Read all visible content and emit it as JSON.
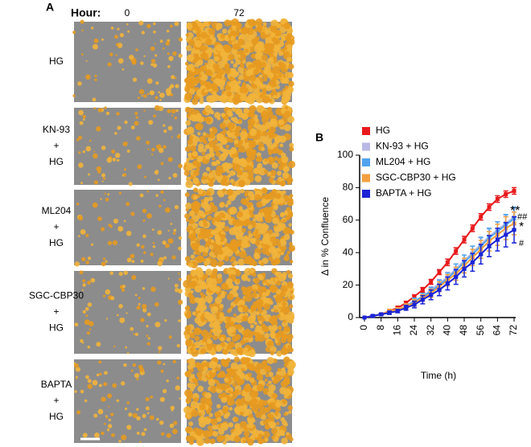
{
  "panel_a": {
    "panel_label": "A",
    "hour_label": "Hour:",
    "columns": [
      "0",
      "72"
    ],
    "rows": [
      [
        "HG"
      ],
      [
        "KN-93",
        "+",
        "HG"
      ],
      [
        "ML204",
        "+",
        "HG"
      ],
      [
        "SGC-CBP30",
        "+",
        "HG"
      ],
      [
        "BAPTA",
        "+",
        "HG"
      ]
    ]
  },
  "chart_data": {
    "type": "line",
    "panel_label": "B",
    "x_label": "Time (h)",
    "y_label": "Δ in % Confluence",
    "x": [
      0,
      4,
      8,
      12,
      16,
      20,
      24,
      28,
      32,
      36,
      40,
      44,
      48,
      52,
      56,
      60,
      64,
      68,
      72
    ],
    "xlim": [
      0,
      72
    ],
    "xticks": [
      0,
      8,
      16,
      24,
      32,
      40,
      48,
      56,
      64,
      72
    ],
    "ylim": [
      0,
      100
    ],
    "yticks": [
      0,
      20,
      40,
      60,
      80,
      100
    ],
    "legend": "upper left",
    "series": [
      {
        "name": "HG",
        "color": "#e8191c",
        "values": [
          0,
          1,
          2,
          4,
          6,
          9,
          13,
          17,
          22,
          28,
          34,
          41,
          48,
          55,
          62,
          68,
          73,
          76,
          78
        ],
        "errors": [
          0,
          0.5,
          0.5,
          1,
          1,
          1,
          1,
          1.5,
          1.5,
          1.5,
          2,
          2,
          2,
          2,
          2,
          2,
          2,
          2,
          2
        ]
      },
      {
        "name": "KN-93 + HG",
        "color": "#b9b9e8",
        "values": [
          0,
          1,
          2,
          3,
          5,
          7,
          10,
          13,
          17,
          21,
          25,
          30,
          35,
          40,
          45,
          50,
          54,
          58,
          62
        ],
        "errors": [
          0,
          0.5,
          0.5,
          1,
          1,
          1,
          1.5,
          2,
          2,
          2.5,
          3,
          3,
          3.5,
          4,
          4,
          4.5,
          5,
          5,
          5
        ]
      },
      {
        "name": "ML204 + HG",
        "color": "#4fa3ee",
        "values": [
          0,
          1,
          2,
          3,
          5,
          7,
          10,
          13,
          16,
          20,
          24,
          29,
          34,
          39,
          44,
          49,
          53,
          57,
          61
        ],
        "errors": [
          0,
          0.5,
          0.5,
          1,
          1,
          1.5,
          2,
          2,
          2.5,
          3,
          3.5,
          4,
          4.5,
          5,
          5.5,
          6,
          6,
          6.5,
          7
        ]
      },
      {
        "name": "SGC-CBP30 + HG",
        "color": "#f4a040",
        "values": [
          0,
          1,
          2,
          4,
          5,
          7,
          9,
          12,
          15,
          19,
          23,
          27,
          32,
          37,
          42,
          47,
          51,
          55,
          58
        ],
        "errors": [
          0,
          0.5,
          0.5,
          1,
          1,
          1.5,
          2,
          2,
          2.5,
          3,
          3.5,
          4,
          4.5,
          5,
          5.5,
          6,
          6.5,
          7,
          7
        ]
      },
      {
        "name": "BAPTA + HG",
        "color": "#1a23d6",
        "values": [
          0,
          1,
          2,
          3,
          4,
          6,
          8,
          11,
          14,
          17,
          21,
          25,
          30,
          34,
          39,
          44,
          48,
          51,
          54
        ],
        "errors": [
          0,
          0.5,
          0.5,
          1,
          1,
          1.5,
          2,
          2.5,
          3,
          3.5,
          4,
          4.5,
          5,
          5.5,
          6,
          6.5,
          7,
          7.5,
          8
        ]
      }
    ],
    "annotations": [
      "**",
      "##",
      "*",
      "#"
    ]
  }
}
